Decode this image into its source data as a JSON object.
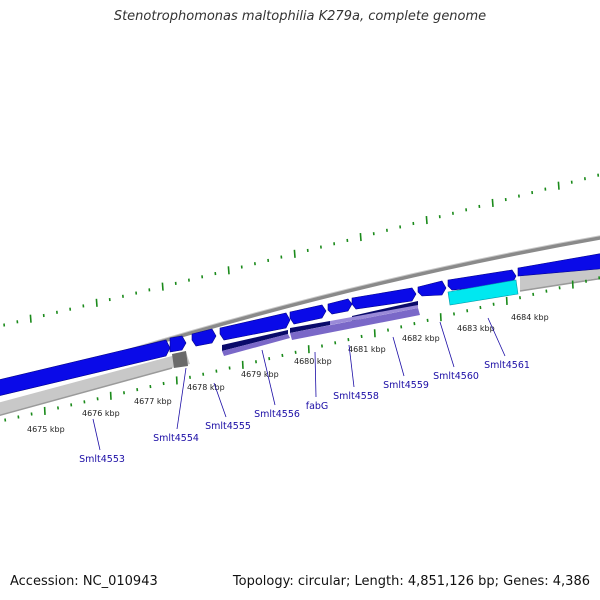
{
  "title": "Stenotrophomonas maltophilia K279a, complete genome",
  "footer": {
    "accession": "Accession: NC_010943",
    "summary": "Topology: circular; Length: 4,851,126 bp; Genes: 4,386"
  },
  "kbp_labels": [
    "4675 kbp",
    "4676 kbp",
    "4677 kbp",
    "4678 kbp",
    "4679 kbp",
    "4680 kbp",
    "4681 kbp",
    "4682 kbp",
    "4683 kbp",
    "4684 kbp"
  ],
  "gene_labels": [
    "Smlt4553",
    "Smlt4554",
    "Smlt4555",
    "Smlt4556",
    "fabG",
    "Smlt4558",
    "Smlt4559",
    "Smlt4560",
    "Smlt4561"
  ],
  "colors": {
    "cds": "#0a0ae8",
    "rna_highlight": "#00e8f0",
    "feature_dark": "#0a0a6a",
    "feature_purple": "#7a68c8",
    "backbone": "#888888",
    "ticks": "#1a8a1a",
    "gene_label": "#1c0ea6"
  }
}
